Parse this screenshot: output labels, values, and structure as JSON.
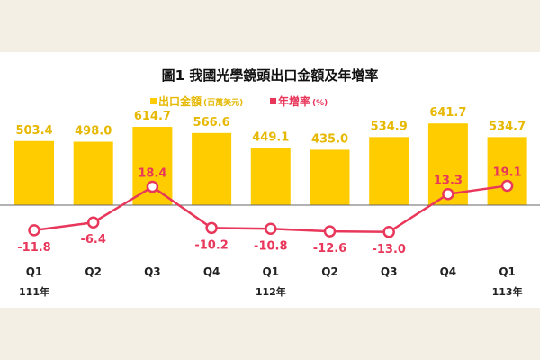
{
  "chart_data": {
    "type": "bar+line",
    "title": "圖1  我國光學鏡頭出口金額及年增率",
    "categories": [
      "Q1",
      "Q2",
      "Q3",
      "Q4",
      "Q1",
      "Q2",
      "Q3",
      "Q4",
      "Q1"
    ],
    "year_labels": [
      {
        "index": 0,
        "label": "111年"
      },
      {
        "index": 4,
        "label": "112年"
      },
      {
        "index": 8,
        "label": "113年"
      }
    ],
    "series": [
      {
        "name": "出口金額",
        "unit": "(百萬美元)",
        "type": "bar",
        "color": "#ffcc00",
        "values": [
          503.4,
          498.0,
          614.7,
          566.6,
          449.1,
          435.0,
          534.9,
          641.7,
          534.7
        ],
        "labels": [
          "503.4",
          "498.0",
          "614.7",
          "566.6",
          "449.1",
          "435.0",
          "534.9",
          "641.7",
          "534.7"
        ]
      },
      {
        "name": "年增率",
        "unit": "(%)",
        "type": "line",
        "color": "#e8375b",
        "values": [
          -11.8,
          -6.4,
          18.4,
          -10.2,
          -10.8,
          -12.6,
          -13.0,
          13.3,
          19.1
        ],
        "labels": [
          "-11.8",
          "-6.4",
          "18.4",
          "-10.2",
          "-10.8",
          "-12.6",
          "-13.0",
          "13.3",
          "19.1"
        ]
      }
    ],
    "legend_position": "top-center"
  }
}
